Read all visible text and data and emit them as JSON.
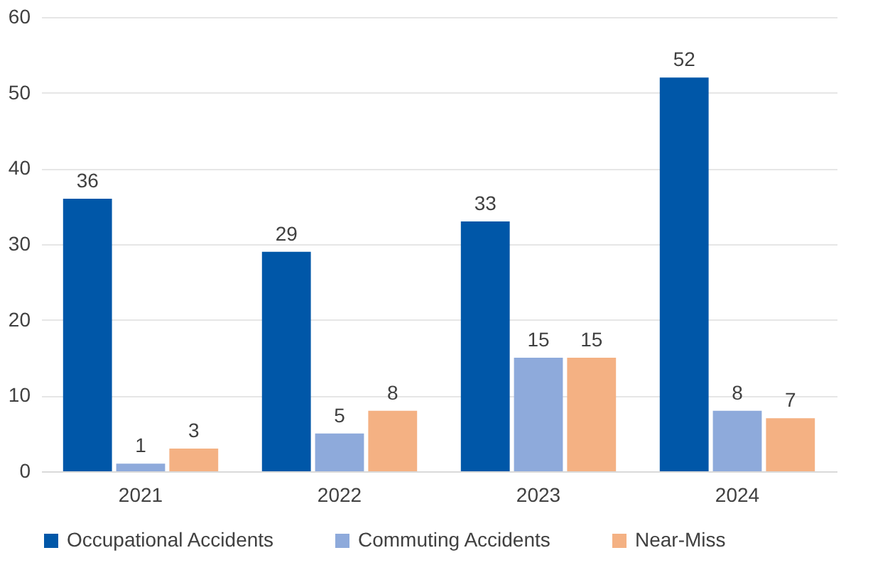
{
  "chart_data": {
    "type": "bar",
    "categories": [
      "2021",
      "2022",
      "2023",
      "2024"
    ],
    "series": [
      {
        "name": "Occupational Accidents",
        "color": "#0057a8",
        "values": [
          36,
          29,
          33,
          52
        ]
      },
      {
        "name": "Commuting Accidents",
        "color": "#8eaadb",
        "values": [
          1,
          5,
          15,
          8
        ]
      },
      {
        "name": "Near-Miss",
        "color": "#f4b183",
        "values": [
          3,
          8,
          15,
          7
        ]
      }
    ],
    "ylim": [
      0,
      60
    ],
    "yticks": [
      0,
      10,
      20,
      30,
      40,
      50,
      60
    ],
    "grid": "y",
    "legend": "bottom",
    "data_labels": true
  }
}
